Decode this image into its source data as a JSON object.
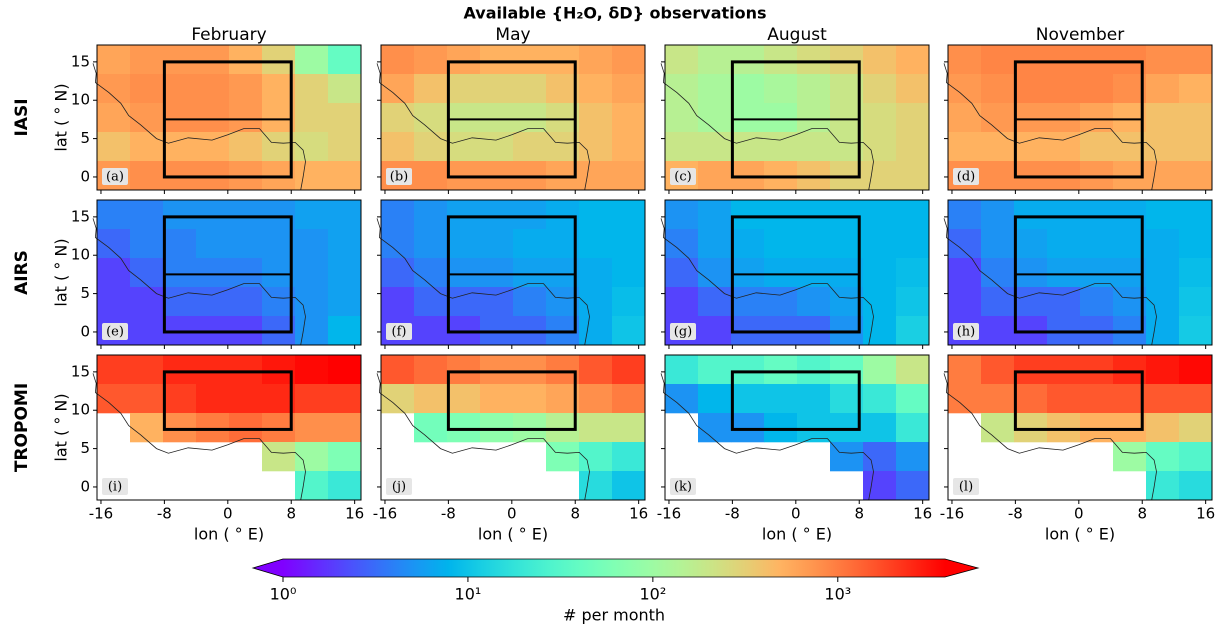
{
  "chart_data": {
    "type": "heatmap",
    "title": "Available {H₂O, δD} observations",
    "columns": [
      "February",
      "May",
      "August",
      "November"
    ],
    "rows": [
      "IASI",
      "AIRS",
      "TROPOMI"
    ],
    "xlabel": "lon ( ° E)",
    "ylabel": "lat ( ° N)",
    "xlim": [
      -16.5,
      16.8
    ],
    "ylim": [
      -1.7,
      17.2
    ],
    "xticks": [
      -16,
      -8,
      0,
      8,
      16
    ],
    "yticks": [
      0,
      5,
      10,
      15
    ],
    "colormap": "rainbow",
    "log_scale": true,
    "clim": [
      1,
      3800
    ],
    "colorbar_label": "# per month",
    "colorbar_ticks": [
      {
        "value": 1,
        "label": "10⁰"
      },
      {
        "value": 10,
        "label": "10¹"
      },
      {
        "value": 100,
        "label": "10²"
      },
      {
        "value": 1000,
        "label": "10³"
      }
    ],
    "regions": [
      {
        "lon": [
          -8,
          8
        ],
        "lat": [
          0,
          7.5,
          15
        ]
      },
      {
        "lon": [
          -8,
          8
        ],
        "lat": [
          0,
          7.5,
          15
        ]
      },
      {
        "lon": [
          -8,
          8
        ],
        "lat": [
          7.5,
          15
        ]
      }
    ],
    "panels": [
      {
        "label": "(a)",
        "values": [
          [
            600,
            700,
            700,
            700,
            500,
            300,
            100,
            40
          ],
          [
            700,
            800,
            800,
            800,
            700,
            500,
            300,
            200
          ],
          [
            600,
            700,
            800,
            800,
            700,
            500,
            300,
            300
          ],
          [
            400,
            500,
            500,
            500,
            400,
            300,
            250,
            300
          ],
          [
            700,
            800,
            800,
            800,
            700,
            600,
            500,
            500
          ]
        ]
      },
      {
        "label": "(b)",
        "values": [
          [
            800,
            700,
            600,
            500,
            500,
            500,
            600,
            700
          ],
          [
            600,
            400,
            300,
            300,
            300,
            400,
            500,
            600
          ],
          [
            300,
            250,
            200,
            200,
            200,
            250,
            400,
            500
          ],
          [
            400,
            300,
            250,
            250,
            300,
            300,
            400,
            500
          ],
          [
            800,
            800,
            700,
            700,
            700,
            600,
            600,
            600
          ]
        ]
      },
      {
        "label": "(c)",
        "values": [
          [
            200,
            150,
            150,
            200,
            250,
            300,
            400,
            500
          ],
          [
            150,
            120,
            100,
            120,
            150,
            200,
            300,
            400
          ],
          [
            150,
            120,
            100,
            100,
            150,
            200,
            250,
            300
          ],
          [
            200,
            200,
            200,
            200,
            200,
            200,
            250,
            300
          ],
          [
            500,
            600,
            600,
            500,
            400,
            300,
            300,
            300
          ]
        ]
      },
      {
        "label": "(d)",
        "values": [
          [
            800,
            900,
            900,
            900,
            900,
            900,
            800,
            800
          ],
          [
            700,
            800,
            900,
            900,
            900,
            800,
            600,
            500
          ],
          [
            600,
            700,
            700,
            700,
            600,
            500,
            400,
            400
          ],
          [
            500,
            500,
            500,
            500,
            400,
            400,
            400,
            400
          ],
          [
            800,
            800,
            800,
            800,
            700,
            600,
            600,
            600
          ]
        ]
      },
      {
        "label": "(e)",
        "values": [
          [
            4,
            4,
            5,
            5,
            5,
            5,
            6,
            6
          ],
          [
            3,
            4,
            4,
            5,
            5,
            5,
            5,
            6
          ],
          [
            2,
            3,
            4,
            4,
            4,
            5,
            5,
            6
          ],
          [
            2,
            2,
            3,
            3,
            3,
            4,
            5,
            6
          ],
          [
            2,
            2,
            2,
            2,
            2,
            3,
            5,
            8
          ]
        ]
      },
      {
        "label": "(f)",
        "values": [
          [
            4,
            5,
            6,
            6,
            6,
            7,
            8,
            8
          ],
          [
            4,
            5,
            6,
            6,
            7,
            7,
            8,
            8
          ],
          [
            3,
            4,
            5,
            5,
            6,
            6,
            7,
            8
          ],
          [
            2,
            3,
            3,
            3,
            4,
            5,
            7,
            9
          ],
          [
            2,
            2,
            2,
            3,
            3,
            4,
            7,
            10
          ]
        ]
      },
      {
        "label": "(g)",
        "values": [
          [
            5,
            6,
            8,
            8,
            8,
            8,
            8,
            8
          ],
          [
            4,
            6,
            7,
            8,
            8,
            8,
            8,
            8
          ],
          [
            3,
            5,
            6,
            7,
            7,
            7,
            8,
            9
          ],
          [
            2,
            3,
            4,
            4,
            5,
            6,
            8,
            10
          ],
          [
            2,
            2,
            3,
            3,
            3,
            5,
            8,
            12
          ]
        ]
      },
      {
        "label": "(h)",
        "values": [
          [
            4,
            5,
            7,
            7,
            7,
            7,
            8,
            8
          ],
          [
            3,
            5,
            6,
            7,
            7,
            7,
            7,
            8
          ],
          [
            2,
            4,
            5,
            6,
            6,
            6,
            7,
            9
          ],
          [
            2,
            3,
            3,
            3,
            4,
            5,
            7,
            10
          ],
          [
            2,
            2,
            2,
            3,
            3,
            4,
            7,
            11
          ]
        ]
      },
      {
        "label": "(i)",
        "values": [
          [
            2000,
            2000,
            2500,
            2500,
            2500,
            3000,
            3500,
            3800
          ],
          [
            1500,
            1500,
            2000,
            2500,
            2500,
            2500,
            2000,
            2000
          ],
          [
            null,
            500,
            800,
            1000,
            1200,
            1000,
            800,
            800
          ],
          [
            null,
            null,
            null,
            null,
            null,
            200,
            100,
            60
          ],
          [
            null,
            null,
            null,
            null,
            null,
            null,
            30,
            20
          ]
        ]
      },
      {
        "label": "(j)",
        "values": [
          [
            1500,
            1200,
            1000,
            800,
            800,
            1000,
            1500,
            2000
          ],
          [
            300,
            400,
            400,
            500,
            500,
            600,
            800,
            1000
          ],
          [
            null,
            50,
            60,
            80,
            100,
            150,
            200,
            200
          ],
          [
            null,
            null,
            null,
            null,
            null,
            60,
            30,
            20
          ],
          [
            null,
            null,
            null,
            null,
            null,
            null,
            15,
            10
          ]
        ]
      },
      {
        "label": "(k)",
        "values": [
          [
            20,
            30,
            30,
            40,
            30,
            40,
            100,
            200
          ],
          [
            5,
            8,
            10,
            10,
            10,
            15,
            20,
            40
          ],
          [
            null,
            5,
            5,
            8,
            10,
            10,
            10,
            20
          ],
          [
            null,
            null,
            null,
            null,
            null,
            5,
            3,
            5
          ],
          [
            null,
            null,
            null,
            null,
            null,
            null,
            2,
            3
          ]
        ]
      },
      {
        "label": "(l)",
        "values": [
          [
            1000,
            1500,
            2000,
            2000,
            2000,
            2500,
            3000,
            3500
          ],
          [
            1000,
            1000,
            1200,
            1500,
            1500,
            1500,
            1500,
            1500
          ],
          [
            null,
            200,
            300,
            400,
            500,
            500,
            400,
            300
          ],
          [
            null,
            null,
            null,
            null,
            null,
            100,
            40,
            30
          ],
          [
            null,
            null,
            null,
            null,
            null,
            null,
            20,
            15
          ]
        ]
      }
    ]
  }
}
